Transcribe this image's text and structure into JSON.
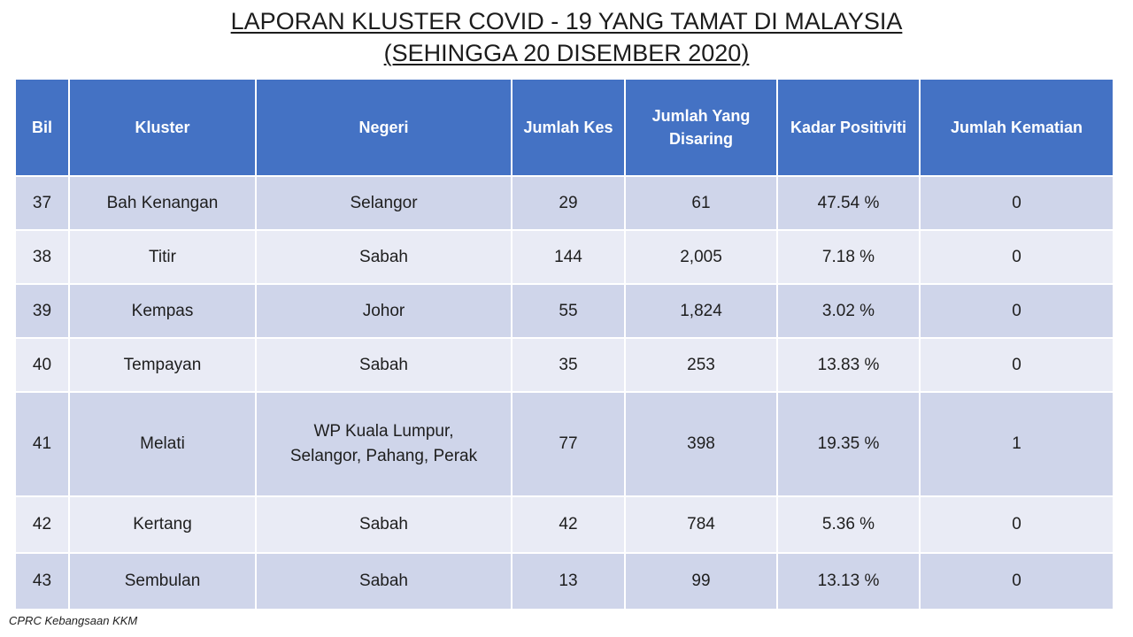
{
  "title": {
    "line1": "LAPORAN KLUSTER COVID - 19 YANG TAMAT DI MALAYSIA",
    "line2": "(SEHINGGA 20 DISEMBER 2020)"
  },
  "table": {
    "headers": {
      "bil": "Bil",
      "kluster": "Kluster",
      "negeri": "Negeri",
      "jumlah_kes": "Jumlah Kes",
      "jumlah_disaring_1": "Jumlah Yang",
      "jumlah_disaring_2": "Disaring",
      "kadar_positiviti": "Kadar Positiviti",
      "jumlah_kematian": "Jumlah Kematian"
    },
    "rows": [
      {
        "bil": "37",
        "kluster": "Bah Kenangan",
        "negeri": "Selangor",
        "negeri2": "",
        "jumlah_kes": "29",
        "jumlah_disaring": "61",
        "kadar_positiviti": "47.54 %",
        "jumlah_kematian": "0"
      },
      {
        "bil": "38",
        "kluster": "Titir",
        "negeri": "Sabah",
        "negeri2": "",
        "jumlah_kes": "144",
        "jumlah_disaring": "2,005",
        "kadar_positiviti": "7.18 %",
        "jumlah_kematian": "0"
      },
      {
        "bil": "39",
        "kluster": "Kempas",
        "negeri": "Johor",
        "negeri2": "",
        "jumlah_kes": "55",
        "jumlah_disaring": "1,824",
        "kadar_positiviti": "3.02 %",
        "jumlah_kematian": "0"
      },
      {
        "bil": "40",
        "kluster": "Tempayan",
        "negeri": "Sabah",
        "negeri2": "",
        "jumlah_kes": "35",
        "jumlah_disaring": "253",
        "kadar_positiviti": "13.83 %",
        "jumlah_kematian": "0"
      },
      {
        "bil": "41",
        "kluster": "Melati",
        "negeri": "WP Kuala Lumpur,",
        "negeri2": "Selangor, Pahang, Perak",
        "jumlah_kes": "77",
        "jumlah_disaring": "398",
        "kadar_positiviti": "19.35 %",
        "jumlah_kematian": "1"
      },
      {
        "bil": "42",
        "kluster": "Kertang",
        "negeri": "Sabah",
        "negeri2": "",
        "jumlah_kes": "42",
        "jumlah_disaring": "784",
        "kadar_positiviti": "5.36 %",
        "jumlah_kematian": "0"
      },
      {
        "bil": "43",
        "kluster": "Sembulan",
        "negeri": "Sabah",
        "negeri2": "",
        "jumlah_kes": "13",
        "jumlah_disaring": "99",
        "kadar_positiviti": "13.13 %",
        "jumlah_kematian": "0"
      }
    ]
  },
  "footer": {
    "source": "CPRC Kebangsaan KKM"
  }
}
